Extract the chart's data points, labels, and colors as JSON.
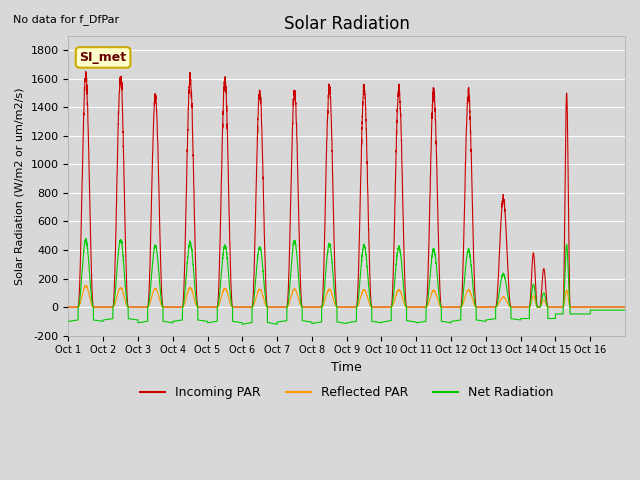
{
  "title": "Solar Radiation",
  "subtitle": "No data for f_DfPar",
  "ylabel": "Solar Radiation (W/m2 or um/m2/s)",
  "xlabel": "Time",
  "ylim": [
    -200,
    1900
  ],
  "yticks": [
    -200,
    0,
    200,
    400,
    600,
    800,
    1000,
    1200,
    1400,
    1600,
    1800
  ],
  "xtick_labels": [
    "Oct 1",
    "Oct 2",
    "Oct 3",
    "Oct 4",
    "Oct 5",
    "Oct 6",
    "Oct 7",
    "Oct 8",
    "Oct 9",
    "Oct 10",
    "Oct 11",
    "Oct 12",
    "Oct 13",
    "Oct 14",
    "Oct 15",
    "Oct 16"
  ],
  "legend_labels": [
    "Incoming PAR",
    "Reflected PAR",
    "Net Radiation"
  ],
  "bg_color": "#d8d8d8",
  "box_label": "SI_met",
  "box_bg": "#ffffcc",
  "box_border": "#ccaa00",
  "incoming_color": "#cc0000",
  "reflected_color": "#ff9900",
  "net_color": "#00cc00",
  "n_days": 16,
  "day_peaks_incoming": [
    1620,
    1610,
    1480,
    1600,
    1590,
    1510,
    1500,
    1540,
    1530,
    1530,
    1500,
    1500,
    760,
    380,
    1500,
    0
  ],
  "day_peaks_incoming2": [
    0,
    0,
    0,
    0,
    0,
    0,
    0,
    0,
    0,
    0,
    0,
    0,
    0,
    270,
    0,
    0
  ],
  "day_peaks_reflected": [
    150,
    135,
    130,
    135,
    130,
    125,
    125,
    125,
    120,
    120,
    115,
    120,
    70,
    100,
    120,
    0
  ],
  "day_peaks_net": [
    470,
    470,
    430,
    450,
    430,
    420,
    460,
    440,
    430,
    420,
    400,
    400,
    230,
    200,
    440,
    0
  ],
  "night_trough_net": [
    -100,
    -90,
    -110,
    -100,
    -110,
    -120,
    -105,
    -115,
    -110,
    -105,
    -110,
    -100,
    -90,
    -80,
    -80,
    -70
  ]
}
